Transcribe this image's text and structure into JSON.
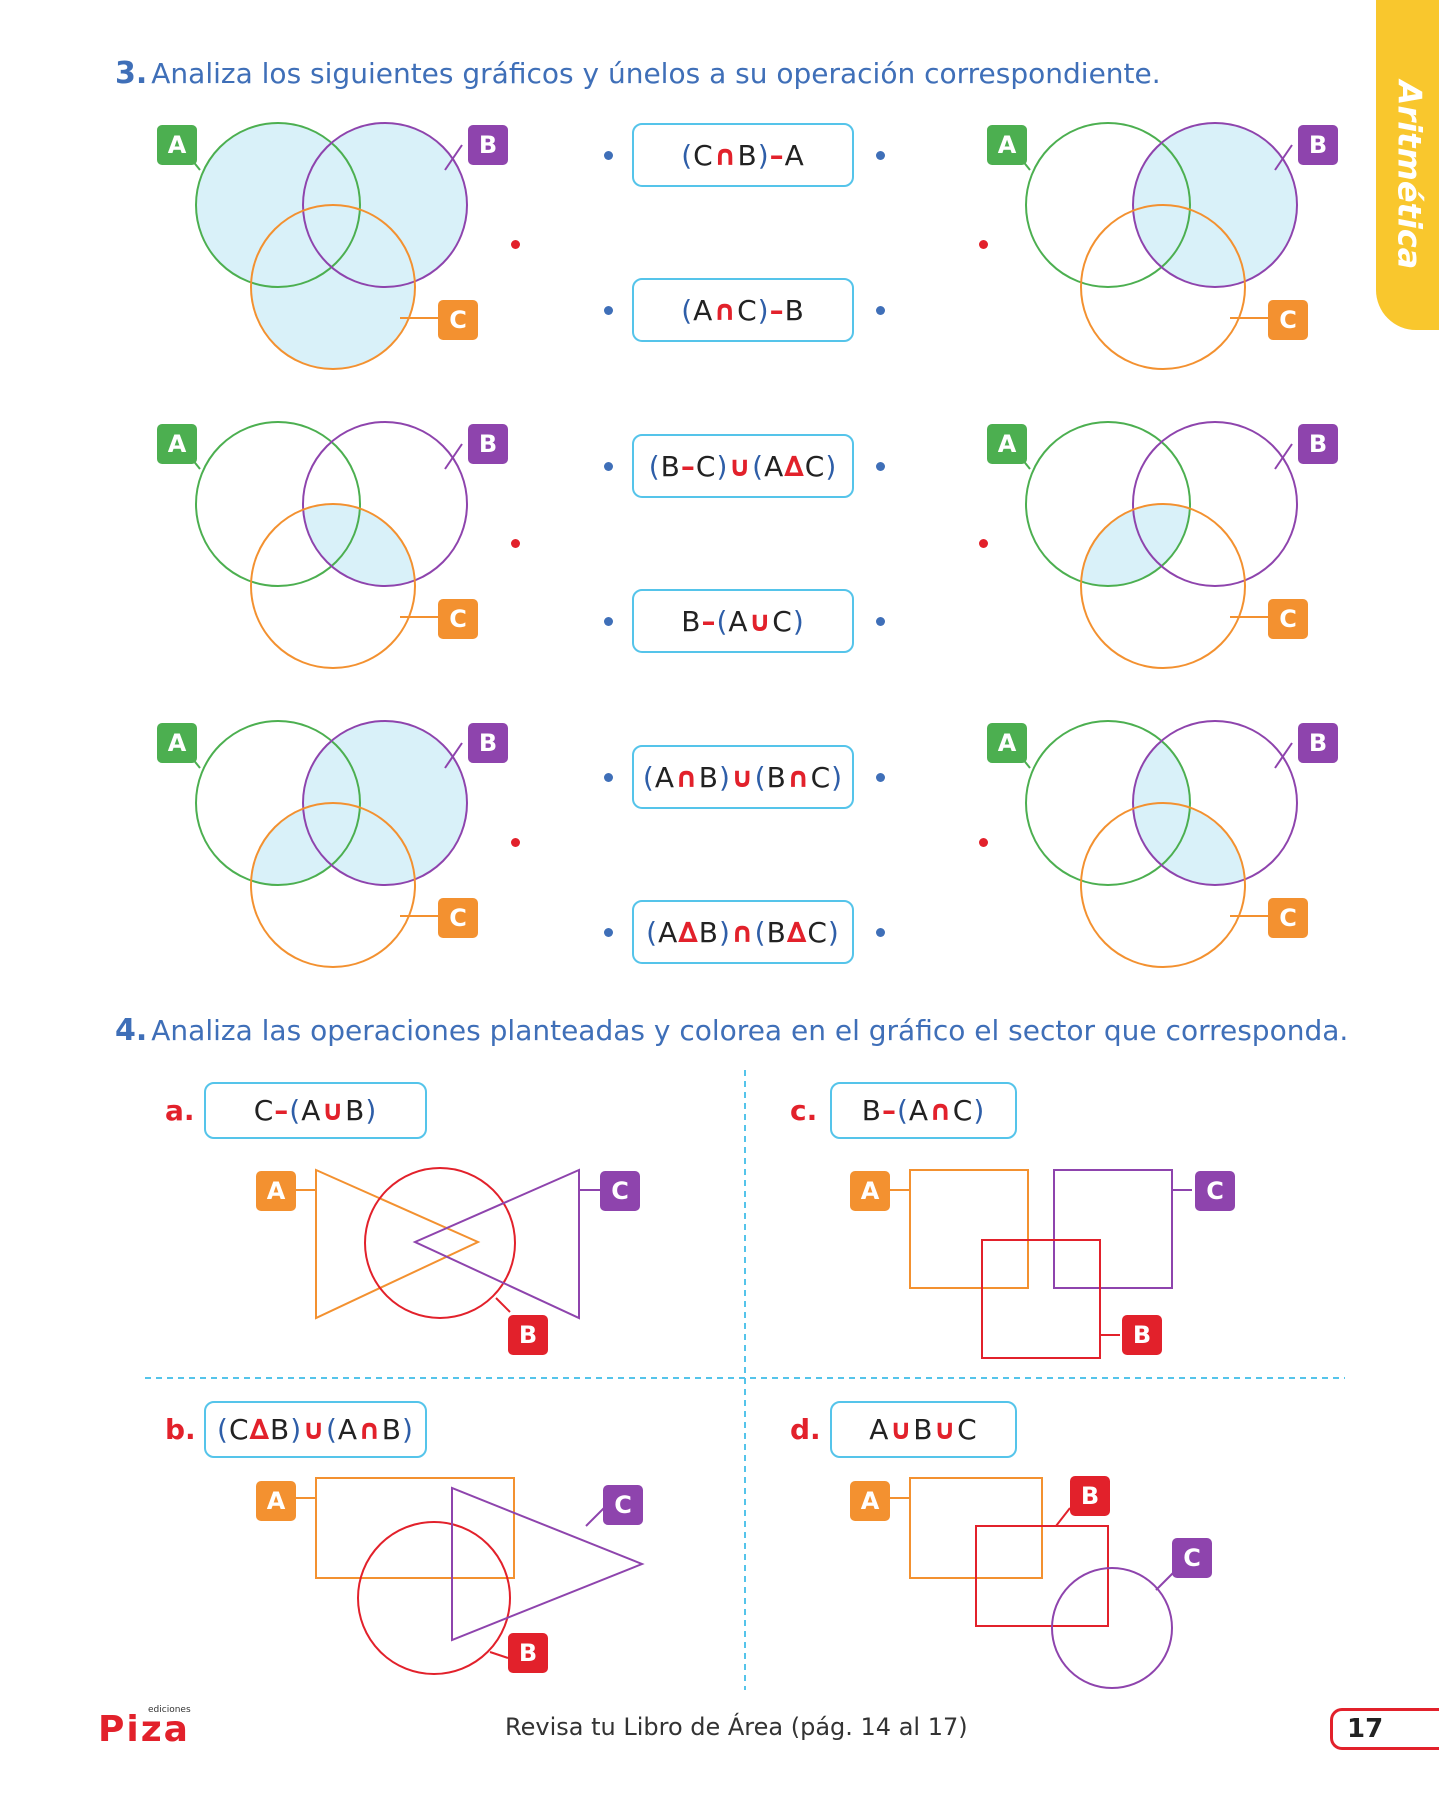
{
  "side_tab": {
    "label": "Aritmética"
  },
  "q3": {
    "number": "3.",
    "instruction": "Analiza los siguientes gráficos y únelos a su operación correspondiente.",
    "operations": [
      {
        "parts": [
          "(",
          "C",
          "∩",
          "B",
          ")",
          " – ",
          "A"
        ]
      },
      {
        "parts": [
          "(",
          "A",
          "∩",
          "C",
          ")",
          " – ",
          "B"
        ]
      },
      {
        "parts": [
          "(",
          "B",
          " – ",
          "C",
          ")",
          "∪",
          "(",
          "A",
          "∆",
          "C",
          ")"
        ]
      },
      {
        "parts": [
          "",
          "B",
          " – ",
          "",
          "(",
          "A",
          "∪",
          "C",
          ")"
        ]
      },
      {
        "parts": [
          "(",
          "A",
          "∩",
          "B",
          ")",
          "∪",
          "(",
          "B",
          "∩",
          "C",
          ")"
        ]
      },
      {
        "parts": [
          "(",
          "A",
          "∆",
          "B",
          ")",
          "∩",
          "(",
          "B",
          "∆",
          "C",
          ")"
        ]
      }
    ],
    "set_labels": {
      "a": "A",
      "b": "B",
      "c": "C"
    }
  },
  "q4": {
    "number": "4.",
    "instruction": "Analiza las operaciones planteadas y colorea en el gráfico el sector que corresponda.",
    "items": [
      {
        "letter": "a.",
        "op": [
          "C",
          " – ",
          "(",
          "A",
          "∪",
          "B",
          ")"
        ]
      },
      {
        "letter": "b.",
        "op": [
          "(",
          "C",
          "∆",
          "B",
          ")",
          "∪",
          "(",
          "A",
          "∩",
          "B",
          ")"
        ]
      },
      {
        "letter": "c.",
        "op": [
          "B",
          " – ",
          "(",
          "A",
          "∩",
          "C",
          ")"
        ]
      },
      {
        "letter": "d.",
        "op": [
          "A",
          "∪",
          "B",
          "∪",
          "C"
        ]
      }
    ]
  },
  "footer": {
    "logo_small": "ediciones",
    "logo_main": "Piza",
    "note": "Revisa tu Libro de Área (pág. 14 al 17)",
    "page_number": "17"
  },
  "colors": {
    "green": "#4caf50",
    "purple": "#8e44ad",
    "orange": "#f39130",
    "red": "#e2212b",
    "blue_text": "#3f6fb8",
    "shade": "#d9f1f9",
    "tab": "#f9c72d"
  }
}
